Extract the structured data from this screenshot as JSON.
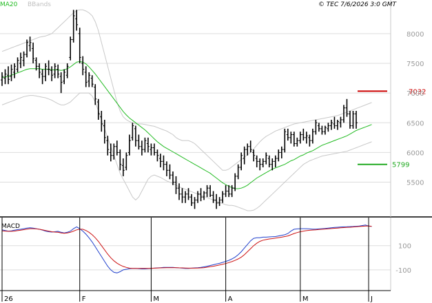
{
  "header": {
    "legend_ma": "MA20",
    "legend_bb": "BBands",
    "copyright": "© TEC 7/6/2026 3:0 GMT"
  },
  "colors": {
    "price": "#000000",
    "ma": "#22bb22",
    "bbands": "#c8c8c8",
    "grid": "#dddddd",
    "resistance": "#cc0000",
    "support": "#22aa22",
    "macd_line": "#1f3fcc",
    "signal_line": "#cc1111"
  },
  "chart_data": [
    {
      "type": "line",
      "title": "",
      "ylim": [
        4950,
        8450
      ],
      "y_ticks": [
        5500,
        6000,
        6500,
        7000,
        7500,
        8000
      ],
      "y_tick_labels": [
        "5500",
        "6000",
        "6500",
        "7000",
        "7500",
        "8000"
      ],
      "month_labels": [
        "26",
        "F",
        "M",
        "A",
        "M",
        "J"
      ],
      "month_start_index": [
        0,
        25,
        48,
        72,
        96,
        118
      ],
      "grid": true,
      "ohlc": [
        [
          7220,
          7350,
          7120,
          7280
        ],
        [
          7250,
          7400,
          7150,
          7320
        ],
        [
          7300,
          7450,
          7150,
          7230
        ],
        [
          7280,
          7480,
          7200,
          7400
        ],
        [
          7350,
          7500,
          7250,
          7450
        ],
        [
          7400,
          7600,
          7350,
          7550
        ],
        [
          7500,
          7680,
          7420,
          7600
        ],
        [
          7550,
          7700,
          7450,
          7650
        ],
        [
          7650,
          7900,
          7600,
          7850
        ],
        [
          7800,
          7950,
          7700,
          7850
        ],
        [
          7750,
          7850,
          7500,
          7580
        ],
        [
          7550,
          7600,
          7380,
          7450
        ],
        [
          7450,
          7500,
          7250,
          7350
        ],
        [
          7320,
          7400,
          7150,
          7280
        ],
        [
          7280,
          7500,
          7200,
          7450
        ],
        [
          7400,
          7550,
          7300,
          7400
        ],
        [
          7380,
          7450,
          7200,
          7300
        ],
        [
          7320,
          7500,
          7250,
          7450
        ],
        [
          7400,
          7480,
          7250,
          7320
        ],
        [
          7280,
          7350,
          7000,
          7180
        ],
        [
          7200,
          7400,
          7150,
          7350
        ],
        [
          7300,
          7500,
          7250,
          7450
        ],
        [
          7600,
          7950,
          7550,
          7900
        ],
        [
          7900,
          8400,
          7850,
          8300
        ],
        [
          8250,
          8400,
          8050,
          8150
        ],
        [
          8000,
          8100,
          7500,
          7600
        ],
        [
          7500,
          7620,
          7300,
          7400
        ],
        [
          7350,
          7450,
          7100,
          7180
        ],
        [
          7200,
          7350,
          7100,
          7300
        ],
        [
          7250,
          7300,
          7100,
          7150
        ],
        [
          7100,
          7150,
          6800,
          6900
        ],
        [
          6850,
          6900,
          6550,
          6650
        ],
        [
          6600,
          6700,
          6350,
          6480
        ],
        [
          6450,
          6550,
          6150,
          6250
        ],
        [
          6200,
          6280,
          5950,
          6050
        ],
        [
          6000,
          6150,
          5850,
          5950
        ],
        [
          5950,
          6150,
          5880,
          6100
        ],
        [
          6100,
          6200,
          5950,
          6000
        ],
        [
          6000,
          6050,
          5700,
          5800
        ],
        [
          5780,
          5900,
          5600,
          5700
        ],
        [
          5750,
          6000,
          5700,
          5950
        ],
        [
          6000,
          6300,
          5950,
          6200
        ],
        [
          6250,
          6500,
          6200,
          6450
        ],
        [
          6400,
          6450,
          6100,
          6200
        ],
        [
          6200,
          6300,
          6050,
          6100
        ],
        [
          6100,
          6200,
          5950,
          6050
        ],
        [
          6050,
          6250,
          6000,
          6200
        ],
        [
          6150,
          6250,
          6000,
          6100
        ],
        [
          6050,
          6150,
          5950,
          6080
        ],
        [
          6080,
          6150,
          5950,
          6000
        ],
        [
          6000,
          6050,
          5850,
          5950
        ],
        [
          5900,
          5980,
          5750,
          5850
        ],
        [
          5850,
          5950,
          5700,
          5800
        ],
        [
          5800,
          5850,
          5600,
          5700
        ],
        [
          5700,
          5800,
          5550,
          5620
        ],
        [
          5620,
          5680,
          5450,
          5500
        ],
        [
          5500,
          5600,
          5300,
          5400
        ],
        [
          5400,
          5480,
          5200,
          5300
        ],
        [
          5300,
          5400,
          5150,
          5250
        ],
        [
          5250,
          5350,
          5150,
          5300
        ],
        [
          5300,
          5400,
          5200,
          5250
        ],
        [
          5250,
          5300,
          5100,
          5150
        ],
        [
          5150,
          5250,
          5050,
          5200
        ],
        [
          5200,
          5350,
          5150,
          5300
        ],
        [
          5300,
          5400,
          5180,
          5250
        ],
        [
          5250,
          5350,
          5200,
          5320
        ],
        [
          5320,
          5450,
          5250,
          5400
        ],
        [
          5400,
          5450,
          5250,
          5280
        ],
        [
          5280,
          5350,
          5150,
          5200
        ],
        [
          5200,
          5300,
          5050,
          5150
        ],
        [
          5150,
          5250,
          5100,
          5200
        ],
        [
          5200,
          5350,
          5150,
          5300
        ],
        [
          5300,
          5450,
          5250,
          5350
        ],
        [
          5350,
          5450,
          5250,
          5300
        ],
        [
          5300,
          5450,
          5250,
          5400
        ],
        [
          5400,
          5650,
          5350,
          5600
        ],
        [
          5600,
          5800,
          5550,
          5750
        ],
        [
          5750,
          6000,
          5700,
          5950
        ],
        [
          5900,
          6100,
          5800,
          6050
        ],
        [
          6050,
          6150,
          5950,
          6100
        ],
        [
          6100,
          6200,
          6000,
          6050
        ],
        [
          6000,
          6050,
          5850,
          5950
        ],
        [
          5900,
          5950,
          5750,
          5850
        ],
        [
          5850,
          5900,
          5700,
          5800
        ],
        [
          5800,
          5900,
          5750,
          5850
        ],
        [
          5850,
          6000,
          5800,
          5950
        ],
        [
          5900,
          5950,
          5750,
          5800
        ],
        [
          5800,
          5900,
          5700,
          5850
        ],
        [
          5850,
          5950,
          5750,
          5900
        ],
        [
          5900,
          6050,
          5850,
          6000
        ],
        [
          6000,
          6100,
          5900,
          6050
        ],
        [
          6050,
          6400,
          6000,
          6350
        ],
        [
          6300,
          6400,
          6200,
          6250
        ],
        [
          6250,
          6350,
          6150,
          6300
        ],
        [
          6300,
          6350,
          6100,
          6150
        ],
        [
          6150,
          6250,
          6100,
          6200
        ],
        [
          6200,
          6350,
          6150,
          6300
        ],
        [
          6300,
          6400,
          6200,
          6250
        ],
        [
          6250,
          6350,
          6150,
          6280
        ],
        [
          6250,
          6300,
          6100,
          6200
        ],
        [
          6200,
          6400,
          6150,
          6350
        ],
        [
          6350,
          6550,
          6300,
          6500
        ],
        [
          6450,
          6500,
          6350,
          6400
        ],
        [
          6400,
          6450,
          6300,
          6350
        ],
        [
          6350,
          6450,
          6300,
          6420
        ],
        [
          6400,
          6500,
          6350,
          6450
        ],
        [
          6450,
          6550,
          6380,
          6500
        ],
        [
          6480,
          6600,
          6400,
          6450
        ],
        [
          6450,
          6550,
          6380,
          6520
        ],
        [
          6500,
          6600,
          6420,
          6550
        ],
        [
          6550,
          6800,
          6500,
          6750
        ],
        [
          6750,
          6900,
          6600,
          6650
        ],
        [
          6650,
          6700,
          6400,
          6450
        ],
        [
          6450,
          6700,
          6400,
          6650
        ],
        [
          6650,
          6700,
          6400,
          6500
        ]
      ],
      "ma20": [
        7260,
        7270,
        7280,
        7300,
        7320,
        7340,
        7360,
        7380,
        7400,
        7410,
        7410,
        7410,
        7410,
        7400,
        7400,
        7400,
        7390,
        7390,
        7390,
        7380,
        7390,
        7410,
        7440,
        7480,
        7520,
        7530,
        7520,
        7490,
        7440,
        7380,
        7320,
        7250,
        7180,
        7110,
        7040,
        6970,
        6900,
        6830,
        6760,
        6690,
        6630,
        6580,
        6540,
        6500,
        6460,
        6420,
        6380,
        6330,
        6280,
        6230,
        6180,
        6140,
        6100,
        6070,
        6040,
        6010,
        5980,
        5950,
        5920,
        5890,
        5860,
        5830,
        5800,
        5770,
        5740,
        5710,
        5680,
        5650,
        5610,
        5570,
        5530,
        5490,
        5460,
        5430,
        5410,
        5390,
        5390,
        5400,
        5420,
        5450,
        5490,
        5530,
        5570,
        5600,
        5630,
        5660,
        5690,
        5720,
        5740,
        5760,
        5780,
        5800,
        5830,
        5860,
        5880,
        5910,
        5940,
        5960,
        5990,
        6010,
        6030,
        6060,
        6090,
        6120,
        6140,
        6160,
        6180,
        6200,
        6220,
        6240,
        6260,
        6280,
        6310,
        6340,
        6370,
        6390,
        6410,
        6430,
        6450,
        6470
      ],
      "bb_upper": [
        7700,
        7720,
        7740,
        7760,
        7780,
        7800,
        7820,
        7840,
        7860,
        7880,
        7900,
        7920,
        7940,
        7950,
        7960,
        7980,
        8000,
        8050,
        8100,
        8150,
        8200,
        8250,
        8300,
        8350,
        8390,
        8400,
        8400,
        8380,
        8350,
        8300,
        8200,
        8050,
        7850,
        7650,
        7450,
        7250,
        7050,
        6850,
        6700,
        6600,
        6550,
        6520,
        6500,
        6480,
        6480,
        6480,
        6470,
        6460,
        6450,
        6440,
        6420,
        6400,
        6380,
        6360,
        6330,
        6300,
        6250,
        6220,
        6200,
        6200,
        6200,
        6180,
        6150,
        6100,
        6050,
        6000,
        5950,
        5900,
        5850,
        5800,
        5750,
        5700,
        5700,
        5720,
        5760,
        5800,
        5840,
        5880,
        5920,
        5960,
        6000,
        6060,
        6120,
        6180,
        6230,
        6270,
        6300,
        6330,
        6360,
        6380,
        6400,
        6420,
        6440,
        6460,
        6480,
        6490,
        6500,
        6510,
        6520,
        6530,
        6540,
        6550,
        6560,
        6570,
        6580,
        6590,
        6600,
        6610,
        6620,
        6640,
        6660,
        6680,
        6700,
        6720,
        6740,
        6760,
        6780,
        6800,
        6820,
        6840
      ],
      "bb_lower": [
        6800,
        6820,
        6840,
        6860,
        6880,
        6900,
        6920,
        6940,
        6950,
        6960,
        6960,
        6950,
        6940,
        6930,
        6920,
        6900,
        6880,
        6850,
        6820,
        6800,
        6800,
        6820,
        6850,
        6900,
        6950,
        7000,
        7000,
        7000,
        7000,
        6950,
        6850,
        6700,
        6550,
        6400,
        6250,
        6100,
        5950,
        5800,
        5650,
        5550,
        5450,
        5350,
        5250,
        5200,
        5250,
        5350,
        5450,
        5550,
        5600,
        5620,
        5600,
        5580,
        5550,
        5520,
        5500,
        5480,
        5450,
        5420,
        5400,
        5380,
        5360,
        5340,
        5320,
        5300,
        5280,
        5260,
        5240,
        5220,
        5200,
        5180,
        5160,
        5140,
        5120,
        5110,
        5110,
        5100,
        5080,
        5060,
        5040,
        5020,
        5020,
        5030,
        5060,
        5100,
        5150,
        5200,
        5250,
        5300,
        5350,
        5400,
        5450,
        5500,
        5550,
        5600,
        5650,
        5700,
        5750,
        5800,
        5830,
        5860,
        5880,
        5900,
        5920,
        5940,
        5950,
        5960,
        5970,
        5980,
        5990,
        6000,
        6010,
        6020,
        6040,
        6060,
        6080,
        6100,
        6120,
        6140,
        6160,
        6180
      ],
      "resistance": 7032,
      "resistance_label": "7032",
      "support": 5799,
      "support_label": "5799"
    },
    {
      "type": "line",
      "title": "MACD",
      "ylim": [
        -260,
        320
      ],
      "y_ticks": [
        100,
        -100
      ],
      "y_tick_labels": [
        "100",
        "-100"
      ],
      "macd": [
        230,
        225,
        220,
        222,
        228,
        232,
        235,
        240,
        245,
        248,
        245,
        240,
        235,
        228,
        220,
        215,
        212,
        215,
        218,
        210,
        205,
        210,
        220,
        240,
        255,
        240,
        220,
        195,
        165,
        130,
        90,
        50,
        10,
        -30,
        -70,
        -100,
        -120,
        -125,
        -115,
        -100,
        -95,
        -90,
        -88,
        -88,
        -90,
        -92,
        -92,
        -90,
        -88,
        -86,
        -84,
        -82,
        -80,
        -80,
        -80,
        -80,
        -82,
        -84,
        -86,
        -88,
        -88,
        -86,
        -84,
        -82,
        -80,
        -75,
        -70,
        -64,
        -58,
        -52,
        -46,
        -38,
        -30,
        -22,
        -10,
        5,
        25,
        50,
        80,
        110,
        140,
        160,
        165,
        165,
        170,
        170,
        172,
        174,
        175,
        180,
        185,
        190,
        200,
        220,
        235,
        238,
        240,
        240,
        240,
        238,
        236,
        236,
        238,
        240,
        242,
        245,
        248,
        250,
        252,
        254,
        255,
        256,
        257,
        258,
        260,
        262,
        266,
        270,
        262,
        258
      ],
      "signal": [
        222,
        220,
        218,
        218,
        220,
        224,
        228,
        232,
        236,
        240,
        240,
        238,
        235,
        230,
        225,
        220,
        215,
        212,
        210,
        205,
        202,
        205,
        210,
        220,
        230,
        235,
        235,
        225,
        210,
        190,
        165,
        135,
        100,
        65,
        30,
        0,
        -25,
        -45,
        -60,
        -72,
        -80,
        -86,
        -88,
        -88,
        -88,
        -88,
        -88,
        -88,
        -87,
        -86,
        -85,
        -84,
        -83,
        -82,
        -82,
        -82,
        -82,
        -83,
        -84,
        -85,
        -86,
        -86,
        -86,
        -85,
        -84,
        -82,
        -78,
        -74,
        -70,
        -65,
        -60,
        -54,
        -48,
        -40,
        -32,
        -22,
        -10,
        5,
        25,
        50,
        75,
        100,
        120,
        135,
        145,
        150,
        155,
        158,
        162,
        166,
        170,
        175,
        180,
        190,
        200,
        208,
        215,
        220,
        224,
        227,
        229,
        231,
        233,
        235,
        237,
        239,
        241,
        243,
        245,
        247,
        249,
        251,
        252,
        254,
        256,
        258,
        260,
        262,
        262,
        260
      ]
    }
  ]
}
